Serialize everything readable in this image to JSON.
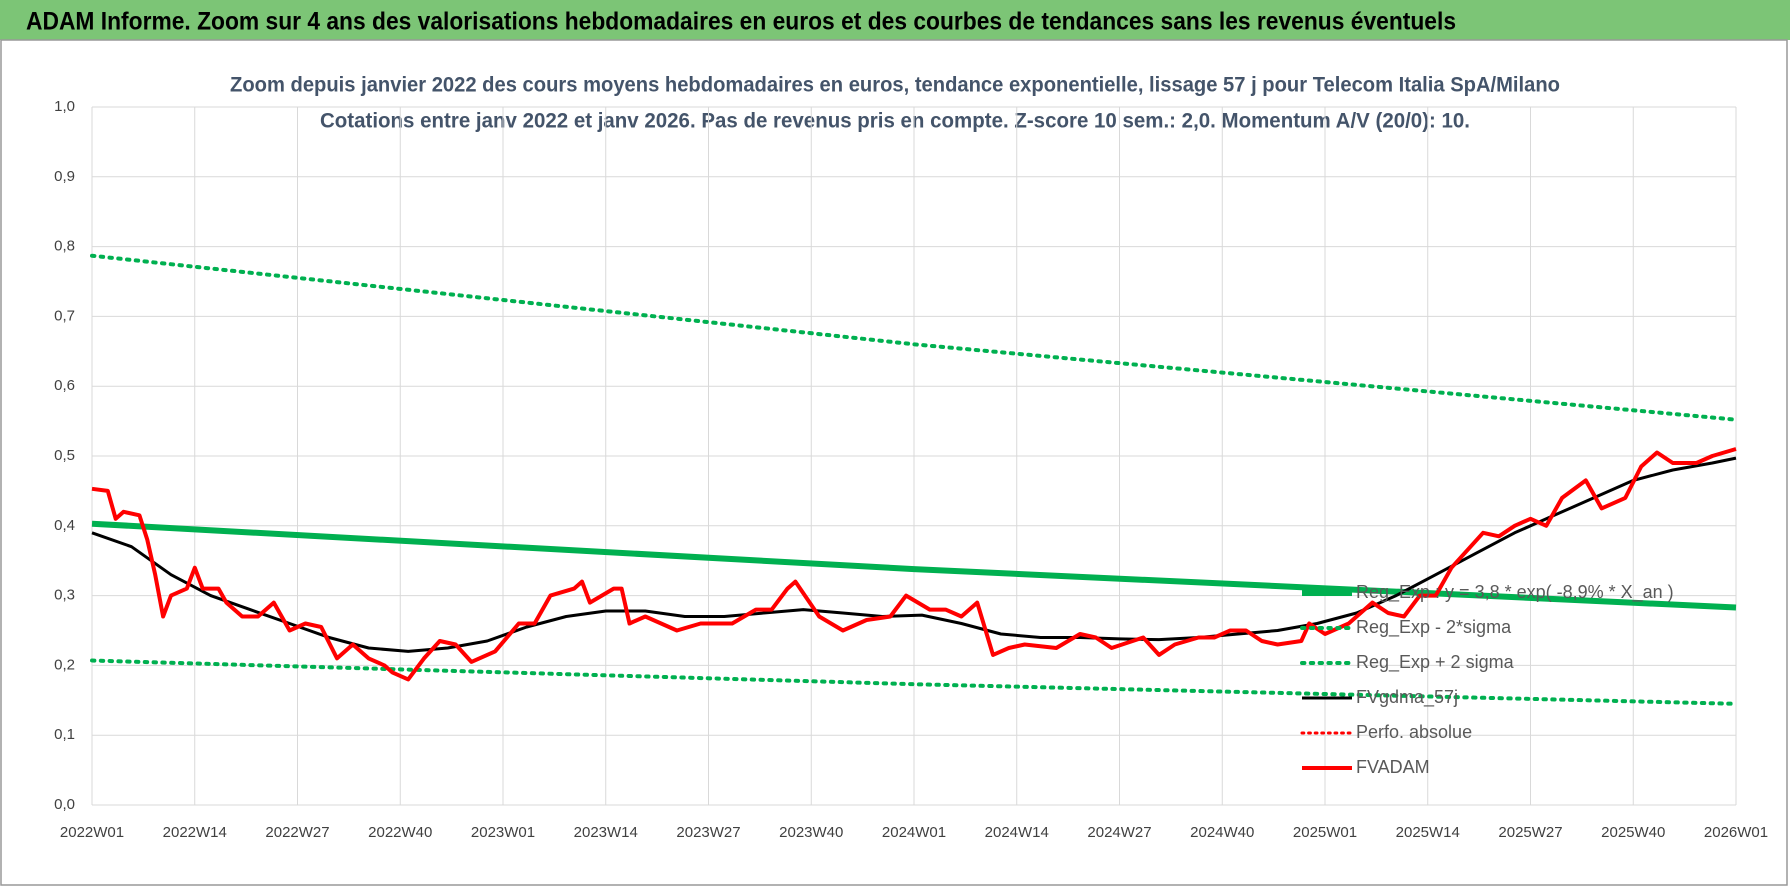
{
  "chart_data": {
    "type": "line",
    "header": "ADAM Informe. Zoom sur 4 ans des valorisations hebdomadaires en euros et des courbes de tendances sans les revenus éventuels",
    "title": "Zoom depuis janvier 2022 des cours moyens hebdomadaires en euros, tendance exponentielle, lissage 57 j pour Telecom Italia SpA/Milano",
    "subtitle": "Cotations entre janv 2022 et janv 2026. Pas de revenus pris en compte. Z-score 10 sem.: 2,0. Momentum A/V (20/0): 10.",
    "xlim": [
      0,
      208
    ],
    "xticks": [
      {
        "value": 0,
        "label": "2022W01"
      },
      {
        "value": 13,
        "label": "2022W14"
      },
      {
        "value": 26,
        "label": "2022W27"
      },
      {
        "value": 39,
        "label": "2022W40"
      },
      {
        "value": 52,
        "label": "2023W01"
      },
      {
        "value": 65,
        "label": "2023W14"
      },
      {
        "value": 78,
        "label": "2023W27"
      },
      {
        "value": 91,
        "label": "2023W40"
      },
      {
        "value": 104,
        "label": "2024W01"
      },
      {
        "value": 117,
        "label": "2024W14"
      },
      {
        "value": 130,
        "label": "2024W27"
      },
      {
        "value": 143,
        "label": "2024W40"
      },
      {
        "value": 156,
        "label": "2025W01"
      },
      {
        "value": 169,
        "label": "2025W14"
      },
      {
        "value": 182,
        "label": "2025W27"
      },
      {
        "value": 195,
        "label": "2025W40"
      },
      {
        "value": 208,
        "label": "2026W01"
      }
    ],
    "ylim": [
      0,
      1
    ],
    "yticks": [
      {
        "value": 0,
        "label": "0,0"
      },
      {
        "value": 0.1,
        "label": "0,1"
      },
      {
        "value": 0.2,
        "label": "0,2"
      },
      {
        "value": 0.3,
        "label": "0,3"
      },
      {
        "value": 0.4,
        "label": "0,4"
      },
      {
        "value": 0.5,
        "label": "0,5"
      },
      {
        "value": 0.6,
        "label": "0,6"
      },
      {
        "value": 0.7,
        "label": "0,7"
      },
      {
        "value": 0.8,
        "label": "0,8"
      },
      {
        "value": 0.9,
        "label": "0,9"
      },
      {
        "value": 1,
        "label": "1,0"
      }
    ],
    "grid": true,
    "series": [
      {
        "name": "Reg_Exp : y = 3,8 * exp( -8,9% * X_an )",
        "color": "#00b050",
        "line_style": "solid",
        "linewidth": 6,
        "x": [
          0,
          104,
          208
        ],
        "values": [
          0.403,
          0.338,
          0.283
        ]
      },
      {
        "name": "Reg_Exp - 2*sigma",
        "color": "#00b050",
        "line_style": "dotted",
        "linewidth": 4,
        "x": [
          0,
          104,
          208
        ],
        "values": [
          0.207,
          0.173,
          0.145
        ]
      },
      {
        "name": "Reg_Exp + 2 sigma",
        "color": "#00b050",
        "line_style": "dotted",
        "linewidth": 4,
        "x": [
          0,
          104,
          208
        ],
        "values": [
          0.787,
          0.66,
          0.552
        ]
      },
      {
        "name": "FVgdma_57j",
        "color": "#000000",
        "line_style": "solid",
        "linewidth": 3,
        "x": [
          0,
          5,
          10,
          15,
          20,
          25,
          30,
          35,
          40,
          45,
          50,
          55,
          60,
          65,
          70,
          75,
          80,
          85,
          90,
          95,
          100,
          105,
          110,
          115,
          120,
          125,
          130,
          135,
          140,
          145,
          150,
          155,
          160,
          165,
          170,
          175,
          180,
          185,
          190,
          195,
          200,
          205,
          208
        ],
        "values": [
          0.39,
          0.37,
          0.33,
          0.3,
          0.28,
          0.26,
          0.24,
          0.225,
          0.22,
          0.225,
          0.235,
          0.255,
          0.27,
          0.278,
          0.278,
          0.27,
          0.27,
          0.275,
          0.28,
          0.275,
          0.27,
          0.272,
          0.26,
          0.245,
          0.24,
          0.24,
          0.238,
          0.237,
          0.24,
          0.245,
          0.25,
          0.26,
          0.275,
          0.3,
          0.33,
          0.36,
          0.39,
          0.415,
          0.44,
          0.465,
          0.48,
          0.49,
          0.497
        ]
      },
      {
        "name": "Perfo. absolue",
        "color": "#ff0000",
        "line_style": "dotted",
        "linewidth": 3,
        "x": [],
        "values": []
      },
      {
        "name": "FVADAM",
        "color": "#ff0000",
        "line_style": "solid",
        "linewidth": 4,
        "x": [
          0,
          2,
          3,
          4,
          6,
          7,
          8,
          9,
          10,
          12,
          13,
          14,
          16,
          17,
          19,
          21,
          23,
          25,
          27,
          29,
          31,
          33,
          35,
          37,
          38,
          40,
          42,
          44,
          46,
          48,
          51,
          54,
          56,
          58,
          61,
          62,
          63,
          66,
          67,
          68,
          70,
          74,
          77,
          81,
          84,
          86,
          88,
          89,
          92,
          95,
          98,
          101,
          103,
          106,
          108,
          110,
          112,
          114,
          116,
          118,
          122,
          125,
          127,
          129,
          133,
          135,
          137,
          140,
          142,
          144,
          146,
          148,
          150,
          153,
          154,
          156,
          159,
          162,
          164,
          166,
          168,
          170,
          172,
          176,
          178,
          180,
          182,
          184,
          186,
          189,
          191,
          194,
          196,
          198,
          200,
          203,
          205,
          208
        ],
        "values": [
          0.453,
          0.45,
          0.41,
          0.42,
          0.415,
          0.38,
          0.33,
          0.27,
          0.3,
          0.31,
          0.34,
          0.31,
          0.31,
          0.29,
          0.27,
          0.27,
          0.29,
          0.25,
          0.26,
          0.255,
          0.21,
          0.23,
          0.21,
          0.2,
          0.19,
          0.18,
          0.21,
          0.235,
          0.23,
          0.205,
          0.22,
          0.26,
          0.26,
          0.3,
          0.31,
          0.32,
          0.29,
          0.31,
          0.31,
          0.26,
          0.27,
          0.25,
          0.26,
          0.26,
          0.28,
          0.28,
          0.31,
          0.32,
          0.27,
          0.25,
          0.265,
          0.27,
          0.3,
          0.28,
          0.28,
          0.27,
          0.29,
          0.215,
          0.225,
          0.23,
          0.225,
          0.245,
          0.24,
          0.225,
          0.24,
          0.215,
          0.23,
          0.24,
          0.24,
          0.25,
          0.25,
          0.235,
          0.23,
          0.235,
          0.26,
          0.245,
          0.26,
          0.29,
          0.275,
          0.27,
          0.3,
          0.3,
          0.34,
          0.39,
          0.385,
          0.4,
          0.41,
          0.4,
          0.44,
          0.465,
          0.425,
          0.44,
          0.485,
          0.505,
          0.49,
          0.49,
          0.5,
          0.51
        ]
      }
    ]
  }
}
